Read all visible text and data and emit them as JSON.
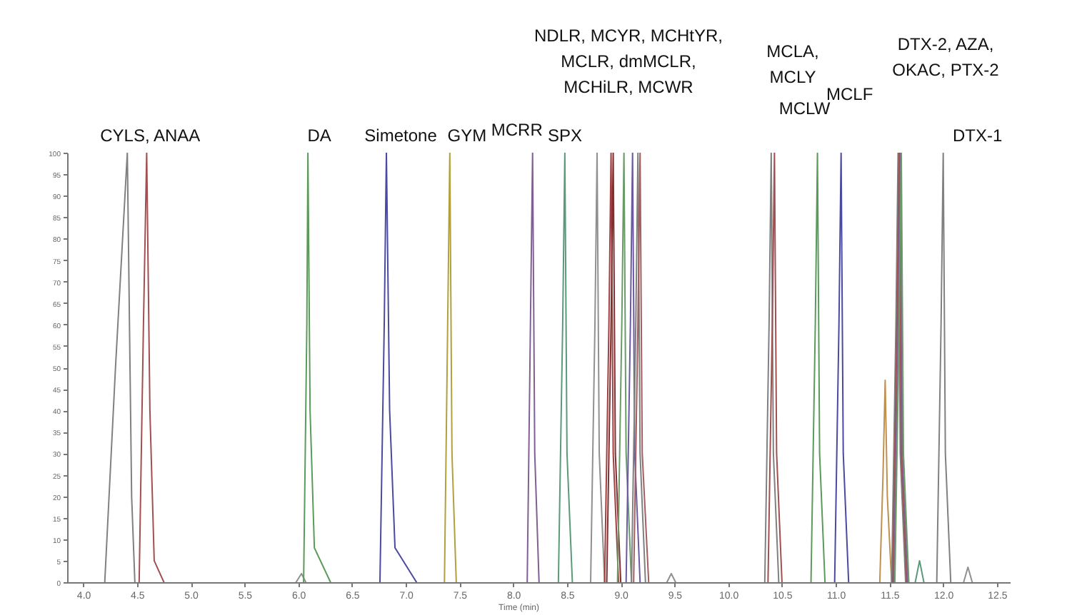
{
  "chart_data": {
    "type": "line",
    "xlabel": "Time (min)",
    "xlim": [
      3.85,
      12.62
    ],
    "xticks": [
      {
        "value": 4,
        "label": "4.0"
      },
      4.5,
      {
        "value": 5,
        "label": "5.0"
      },
      5.5,
      {
        "value": 6,
        "label": "6.0"
      },
      6.5,
      {
        "value": 7,
        "label": "7.0"
      },
      7.5,
      {
        "value": 8,
        "label": "8.0"
      },
      8.5,
      {
        "value": 9,
        "label": "9.0"
      },
      9.5,
      {
        "value": 10,
        "label": "10.0"
      },
      10.5,
      {
        "value": 11,
        "label": "11.0"
      },
      11.5,
      {
        "value": 12,
        "label": "12.0"
      },
      12.5
    ],
    "ylim": [
      0,
      100
    ],
    "yticks": [
      0,
      5,
      10,
      15,
      20,
      25,
      30,
      35,
      40,
      45,
      50,
      55,
      60,
      65,
      70,
      75,
      80,
      85,
      90,
      95,
      100
    ],
    "grid": false,
    "legend": false,
    "series": [
      {
        "color": "#808080",
        "x": [
          4.2,
          4.3,
          4.41,
          4.45,
          4.48
        ],
        "values": [
          0,
          50,
          100,
          20,
          0
        ]
      },
      {
        "color": "#a05050",
        "x": [
          4.52,
          4.56,
          4.59,
          4.62,
          4.66,
          4.75
        ],
        "values": [
          0,
          60,
          100,
          40,
          5,
          0
        ]
      },
      {
        "color": "#909090",
        "x": [
          5.98,
          6.03,
          6.07
        ],
        "values": [
          0,
          2,
          0
        ]
      },
      {
        "color": "#5a9a5a",
        "x": [
          6.05,
          6.08,
          6.09,
          6.11,
          6.15,
          6.3
        ],
        "values": [
          0,
          60,
          100,
          40,
          8,
          0
        ]
      },
      {
        "color": "#4a4aa0",
        "x": [
          6.76,
          6.8,
          6.82,
          6.85,
          6.9,
          7.1
        ],
        "values": [
          0,
          60,
          100,
          40,
          8,
          0
        ]
      },
      {
        "color": "#b0a040",
        "x": [
          7.36,
          7.39,
          7.41,
          7.43,
          7.47
        ],
        "values": [
          0,
          60,
          100,
          30,
          0
        ]
      },
      {
        "color": "#806090",
        "x": [
          8.13,
          8.16,
          8.18,
          8.2,
          8.24
        ],
        "values": [
          0,
          60,
          100,
          30,
          0
        ]
      },
      {
        "color": "#5a9a7a",
        "x": [
          8.42,
          8.46,
          8.48,
          8.5,
          8.55
        ],
        "values": [
          0,
          60,
          100,
          30,
          0
        ]
      },
      {
        "color": "#909090",
        "x": [
          8.72,
          8.76,
          8.78,
          8.8,
          8.85
        ],
        "values": [
          0,
          60,
          100,
          30,
          0
        ]
      },
      {
        "color": "#a04040",
        "x": [
          8.85,
          8.89,
          8.91,
          8.93,
          8.98
        ],
        "values": [
          0,
          60,
          100,
          30,
          0
        ]
      },
      {
        "color": "#803030",
        "x": [
          8.87,
          8.91,
          8.93,
          8.95,
          9.0
        ],
        "values": [
          0,
          60,
          100,
          30,
          0
        ]
      },
      {
        "color": "#6a9a6a",
        "x": [
          8.97,
          9.01,
          9.03,
          9.05,
          9.1
        ],
        "values": [
          0,
          60,
          100,
          30,
          0
        ]
      },
      {
        "color": "#6a5aa0",
        "x": [
          9.05,
          9.09,
          9.11,
          9.13,
          9.18
        ],
        "values": [
          0,
          60,
          100,
          30,
          0
        ]
      },
      {
        "color": "#808080",
        "x": [
          9.1,
          9.14,
          9.16,
          9.18,
          9.23
        ],
        "values": [
          0,
          60,
          100,
          30,
          0
        ]
      },
      {
        "color": "#a06060",
        "x": [
          9.12,
          9.16,
          9.18,
          9.2,
          9.26
        ],
        "values": [
          0,
          60,
          100,
          30,
          0
        ]
      },
      {
        "color": "#909090",
        "x": [
          9.43,
          9.47,
          9.51
        ],
        "values": [
          0,
          2,
          0
        ]
      },
      {
        "color": "#808080",
        "x": [
          10.34,
          10.38,
          10.4,
          10.42,
          10.47
        ],
        "values": [
          0,
          60,
          100,
          30,
          0
        ]
      },
      {
        "color": "#a05050",
        "x": [
          10.37,
          10.41,
          10.43,
          10.45,
          10.5
        ],
        "values": [
          0,
          60,
          100,
          30,
          0
        ]
      },
      {
        "color": "#5a9a5a",
        "x": [
          10.77,
          10.81,
          10.83,
          10.85,
          10.9
        ],
        "values": [
          0,
          60,
          100,
          30,
          0
        ]
      },
      {
        "color": "#4a4aa0",
        "x": [
          10.99,
          11.03,
          11.05,
          11.07,
          11.12
        ],
        "values": [
          0,
          60,
          100,
          30,
          0
        ]
      },
      {
        "color": "#c09050",
        "x": [
          11.41,
          11.44,
          11.46,
          11.48,
          11.52
        ],
        "values": [
          0,
          25,
          47,
          20,
          0
        ]
      },
      {
        "color": "#808080",
        "x": [
          11.52,
          11.56,
          11.58,
          11.6,
          11.65
        ],
        "values": [
          0,
          60,
          100,
          30,
          0
        ]
      },
      {
        "color": "#a05050",
        "x": [
          11.53,
          11.57,
          11.59,
          11.61,
          11.66
        ],
        "values": [
          0,
          60,
          100,
          30,
          0
        ]
      },
      {
        "color": "#806090",
        "x": [
          11.54,
          11.58,
          11.6,
          11.62,
          11.67
        ],
        "values": [
          0,
          60,
          100,
          30,
          0
        ]
      },
      {
        "color": "#6a9a6a",
        "x": [
          11.55,
          11.59,
          11.61,
          11.63,
          11.68
        ],
        "values": [
          0,
          60,
          100,
          30,
          0
        ]
      },
      {
        "color": "#5a9a7a",
        "x": [
          11.74,
          11.78,
          11.82
        ],
        "values": [
          0,
          5,
          0
        ]
      },
      {
        "color": "#808080",
        "x": [
          11.94,
          11.98,
          12.0,
          12.02,
          12.07
        ],
        "values": [
          0,
          60,
          100,
          30,
          0
        ]
      },
      {
        "color": "#909090",
        "x": [
          12.19,
          12.23,
          12.27
        ],
        "values": [
          0,
          3.5,
          0
        ]
      }
    ],
    "annotations": [
      {
        "text": "CYLS, ANAA",
        "x": 4.41,
        "y": 100
      },
      {
        "text": "DA",
        "x": 6.09,
        "y": 100
      },
      {
        "text": "Simetone",
        "x": 6.82,
        "y": 100
      },
      {
        "text": "GYM",
        "x": 7.41,
        "y": 100
      },
      {
        "text": "MCRR",
        "x": 8.18,
        "y": 100
      },
      {
        "text": "SPX",
        "x": 8.48,
        "y": 100
      },
      "NDLR, MCYR, MCHtYR,\nMCLR, dmMCLR,\nMCHiLR, MCWR",
      "MCLA,\nMCLY",
      {
        "text": "MCLW",
        "x": 10.83,
        "y": 100
      },
      {
        "text": "MCLF",
        "x": 11.05,
        "y": 100
      },
      "DTX-2, AZA,\nOKAC, PTX-2",
      {
        "text": "DTX-1",
        "x": 12.0,
        "y": 100
      }
    ]
  }
}
